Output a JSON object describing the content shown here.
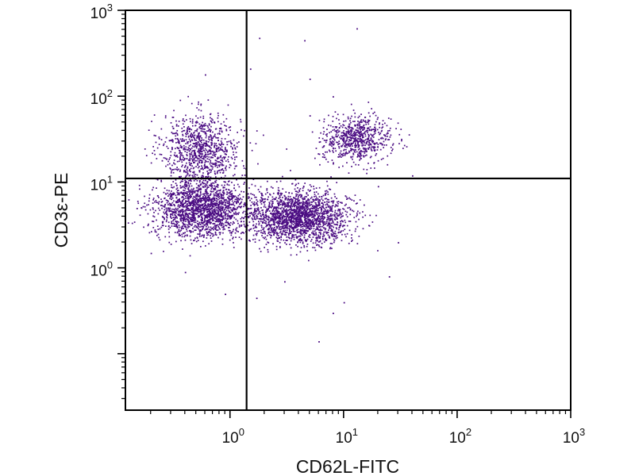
{
  "chart_data": {
    "type": "scatter",
    "title": "",
    "xlabel": "CD62L-FITC",
    "ylabel": "CD3ε-PE",
    "xscale": "log",
    "yscale": "log",
    "xlim": [
      0.12,
      1000
    ],
    "ylim": [
      0.022,
      1000
    ],
    "x_ticks": [
      {
        "base": "10",
        "exp": "0",
        "value": 1
      },
      {
        "base": "10",
        "exp": "1",
        "value": 10
      },
      {
        "base": "10",
        "exp": "2",
        "value": 100
      },
      {
        "base": "10",
        "exp": "3",
        "value": 1000
      }
    ],
    "y_ticks": [
      {
        "base": "10",
        "exp": "0",
        "value": 1
      },
      {
        "base": "10",
        "exp": "1",
        "value": 10
      },
      {
        "base": "10",
        "exp": "2",
        "value": 100
      },
      {
        "base": "10",
        "exp": "3",
        "value": 1000
      }
    ],
    "gates": {
      "x": 1.4,
      "y": 11
    },
    "grid": false,
    "legend": "none",
    "point_color": "#4b0d83",
    "populations": [
      {
        "label": "",
        "x_center": 0.55,
        "y_center": 25,
        "x_spread_log": 0.17,
        "y_spread_log": 0.2,
        "count": 900
      },
      {
        "label": "",
        "x_center": 13,
        "y_center": 32,
        "x_spread_log": 0.15,
        "y_spread_log": 0.13,
        "count": 700
      },
      {
        "label": "",
        "x_center": 0.55,
        "y_center": 5,
        "x_spread_log": 0.2,
        "y_spread_log": 0.17,
        "count": 1800
      },
      {
        "label": "",
        "x_center": 4,
        "y_center": 4,
        "x_spread_log": 0.22,
        "y_spread_log": 0.15,
        "count": 2000
      }
    ],
    "outliers": [
      [
        1.8,
        480
      ],
      [
        4.5,
        450
      ],
      [
        13,
        620
      ],
      [
        5,
        160
      ],
      [
        0.6,
        180
      ],
      [
        1.5,
        210
      ],
      [
        5,
        60
      ],
      [
        8,
        100
      ],
      [
        0.15,
        5
      ],
      [
        0.2,
        1.5
      ],
      [
        1.7,
        0.45
      ],
      [
        8,
        0.3
      ],
      [
        10,
        0.4
      ],
      [
        6,
        0.14
      ],
      [
        25,
        0.8
      ],
      [
        30,
        2
      ],
      [
        3,
        0.7
      ],
      [
        0.4,
        0.9
      ],
      [
        40,
        12
      ],
      [
        0.25,
        18
      ],
      [
        0.9,
        0.5
      ],
      [
        20,
        9
      ]
    ]
  }
}
